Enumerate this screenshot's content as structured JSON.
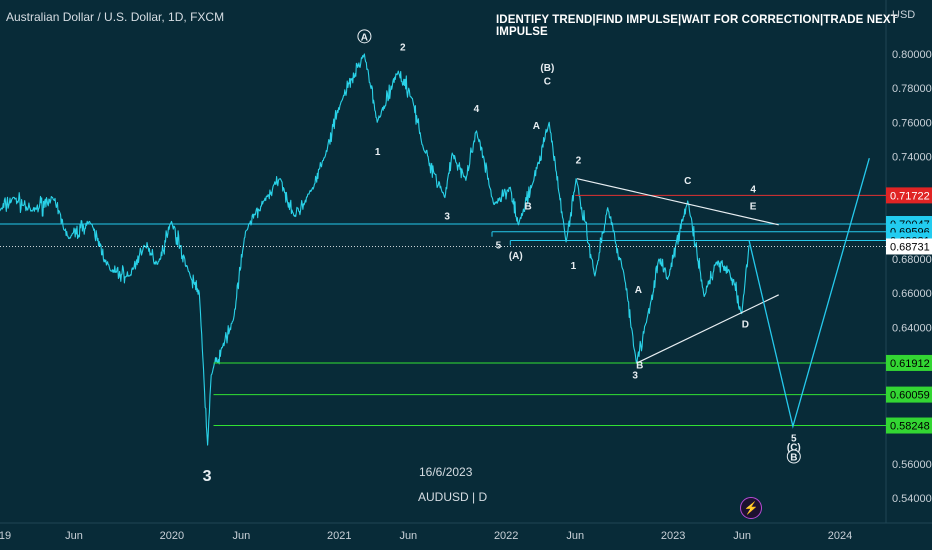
{
  "title": "Australian Dollar / U.S. Dollar, 1D, FXCM",
  "banner": "IDENTIFY TREND|FIND IMPULSE|WAIT FOR CORRECTION|TRADE NEXT IMPULSE",
  "currency": "USD",
  "watermark_date": "16/6/2023",
  "watermark_symbol": "AUDUSD | D",
  "colors": {
    "background": "#082b38",
    "price": "#2ad2e8",
    "support": "#32e032",
    "resistance_red": "#e03131",
    "resistance_cyan": "#25c9ec",
    "trendline": "#e8eef2",
    "axis_text": "#c9d1d8",
    "last_price_bg": "#ffffff",
    "red_badge": "#e02424",
    "cyan_badge": "#22ccf0",
    "green_badge": "#33d633",
    "lightning": "#d35cff"
  },
  "icons": {
    "replay": "lightning-icon"
  },
  "chart_data": {
    "type": "line",
    "symbol": "AUDUSD",
    "timeframe": "1D",
    "x_ticks": [
      "19",
      "Jun",
      "2020",
      "Jun",
      "2021",
      "Jun",
      "2022",
      "Jun",
      "2023",
      "Jun",
      "2024"
    ],
    "x_tick_dates": [
      "2019-01-01",
      "2019-06-01",
      "2020-01-01",
      "2020-06-01",
      "2021-01-01",
      "2021-06-01",
      "2022-01-01",
      "2022-06-01",
      "2023-01-01",
      "2023-06-01",
      "2024-01-01"
    ],
    "y_ticks": [
      "0.80000",
      "0.78000",
      "0.76000",
      "0.74000",
      "0.68000",
      "0.66000",
      "0.64000",
      "0.56000",
      "0.54000"
    ],
    "y_tick_values": [
      0.8,
      0.78,
      0.76,
      0.74,
      0.68,
      0.66,
      0.64,
      0.56,
      0.54
    ],
    "ylim": [
      0.524,
      0.826
    ],
    "grid": false,
    "price_series": {
      "color": "#2ad2e8",
      "points": [
        [
          "2018-12-20",
          0.708
        ],
        [
          "2019-01-20",
          0.716
        ],
        [
          "2019-03-01",
          0.708
        ],
        [
          "2019-04-15",
          0.716
        ],
        [
          "2019-05-20",
          0.692
        ],
        [
          "2019-07-05",
          0.702
        ],
        [
          "2019-08-20",
          0.673
        ],
        [
          "2019-10-01",
          0.67
        ],
        [
          "2019-11-01",
          0.688
        ],
        [
          "2019-12-01",
          0.677
        ],
        [
          "2019-12-31",
          0.702
        ],
        [
          "2020-02-10",
          0.67
        ],
        [
          "2020-03-01",
          0.66
        ],
        [
          "2020-03-19",
          0.571
        ],
        [
          "2020-03-27",
          0.612
        ],
        [
          "2020-04-20",
          0.628
        ],
        [
          "2020-05-15",
          0.645
        ],
        [
          "2020-06-10",
          0.696
        ],
        [
          "2020-07-20",
          0.714
        ],
        [
          "2020-08-25",
          0.727
        ],
        [
          "2020-09-25",
          0.705
        ],
        [
          "2020-11-01",
          0.72
        ],
        [
          "2020-12-01",
          0.74
        ],
        [
          "2021-01-05",
          0.772
        ],
        [
          "2021-02-25",
          0.8
        ],
        [
          "2021-03-25",
          0.76
        ],
        [
          "2021-05-10",
          0.79
        ],
        [
          "2021-06-10",
          0.774
        ],
        [
          "2021-07-01",
          0.747
        ],
        [
          "2021-08-20",
          0.716
        ],
        [
          "2021-09-05",
          0.742
        ],
        [
          "2021-10-05",
          0.726
        ],
        [
          "2021-10-28",
          0.755
        ],
        [
          "2021-12-05",
          0.712
        ],
        [
          "2022-01-10",
          0.722
        ],
        [
          "2022-01-28",
          0.7
        ],
        [
          "2022-03-01",
          0.725
        ],
        [
          "2022-04-05",
          0.76
        ],
        [
          "2022-05-12",
          0.69
        ],
        [
          "2022-06-03",
          0.727
        ],
        [
          "2022-07-14",
          0.67
        ],
        [
          "2022-08-11",
          0.71
        ],
        [
          "2022-09-15",
          0.672
        ],
        [
          "2022-10-13",
          0.619
        ],
        [
          "2022-11-05",
          0.645
        ],
        [
          "2022-12-01",
          0.68
        ],
        [
          "2022-12-20",
          0.668
        ],
        [
          "2023-02-02",
          0.714
        ],
        [
          "2023-03-10",
          0.658
        ],
        [
          "2023-04-05",
          0.678
        ],
        [
          "2023-05-04",
          0.673
        ],
        [
          "2023-05-31",
          0.648
        ],
        [
          "2023-06-16",
          0.688
        ]
      ]
    },
    "projection": {
      "color": "#25c9ec",
      "points": [
        [
          "2023-06-16",
          0.691
        ],
        [
          "2023-09-20",
          0.582
        ],
        [
          "2024-03-05",
          0.739
        ]
      ]
    },
    "horizontal_levels": [
      {
        "value": 0.71722,
        "label": "0.71722",
        "color": "#e03131",
        "badge": "#e02424",
        "start": "2022-06-01"
      },
      {
        "value": 0.70047,
        "label": "0.70047",
        "color": "#25c9ec",
        "badge": "#22ccf0",
        "start": null
      },
      {
        "value": 0.69596,
        "label": "0.69596",
        "color": "#25c9ec",
        "badge": "#22ccf0",
        "start": "2021-12-01"
      },
      {
        "value": 0.69081,
        "label": "0.69081",
        "color": "#25c9ec",
        "badge": "#22ccf0",
        "start": "2022-01-10"
      },
      {
        "value": 0.68731,
        "label": "0.68731",
        "color": "#ffffff",
        "badge": "#ffffff",
        "start": null,
        "dotted": true
      },
      {
        "value": 0.61912,
        "label": "0.61912",
        "color": "#32e032",
        "badge": "#33d633",
        "start": "2020-04-01"
      },
      {
        "value": 0.60059,
        "label": "0.60059",
        "color": "#32e032",
        "badge": "#33d633",
        "start": "2020-04-01"
      },
      {
        "value": 0.58248,
        "label": "0.58248",
        "color": "#32e032",
        "badge": "#33d633",
        "start": "2020-04-01"
      }
    ],
    "trendlines": [
      {
        "from": [
          "2022-06-05",
          0.727
        ],
        "to": [
          "2023-08-20",
          0.7
        ]
      },
      {
        "from": [
          "2022-10-13",
          0.619
        ],
        "to": [
          "2023-08-20",
          0.659
        ]
      }
    ],
    "wave_labels": [
      {
        "text": "A",
        "date": "2021-02-25",
        "price": 0.808,
        "circled": true
      },
      {
        "text": "2",
        "date": "2021-05-20",
        "price": 0.802
      },
      {
        "text": "1",
        "date": "2021-03-26",
        "price": 0.741
      },
      {
        "text": "4",
        "date": "2021-10-28",
        "price": 0.766
      },
      {
        "text": "3",
        "date": "2021-08-25",
        "price": 0.703
      },
      {
        "text": "(B)",
        "date": "2022-04-01",
        "price": 0.79
      },
      {
        "text": "C",
        "date": "2022-04-01",
        "price": 0.782
      },
      {
        "text": "A",
        "date": "2022-03-08",
        "price": 0.756
      },
      {
        "text": "B",
        "date": "2022-02-18",
        "price": 0.709
      },
      {
        "text": "5",
        "date": "2021-12-15",
        "price": 0.686
      },
      {
        "text": "(A)",
        "date": "2022-01-22",
        "price": 0.68
      },
      {
        "text": "2",
        "date": "2022-06-08",
        "price": 0.736
      },
      {
        "text": "1",
        "date": "2022-05-28",
        "price": 0.674
      },
      {
        "text": "C",
        "date": "2023-02-02",
        "price": 0.724
      },
      {
        "text": "4",
        "date": "2023-06-25",
        "price": 0.719
      },
      {
        "text": "E",
        "date": "2023-06-25",
        "price": 0.709
      },
      {
        "text": "A",
        "date": "2022-10-17",
        "price": 0.66
      },
      {
        "text": "B",
        "date": "2022-10-20",
        "price": 0.616
      },
      {
        "text": "D",
        "date": "2023-06-08",
        "price": 0.64
      },
      {
        "text": "3",
        "date": "2022-10-10",
        "price": 0.61
      },
      {
        "text": "5",
        "date": "2023-09-22",
        "price": 0.573
      },
      {
        "text": "(C)",
        "date": "2023-09-22",
        "price": 0.568
      },
      {
        "text": "B",
        "date": "2023-09-22",
        "price": 0.562,
        "circled": true
      },
      {
        "text": "3",
        "date": "2020-03-18",
        "price": 0.55,
        "large": true
      }
    ]
  }
}
